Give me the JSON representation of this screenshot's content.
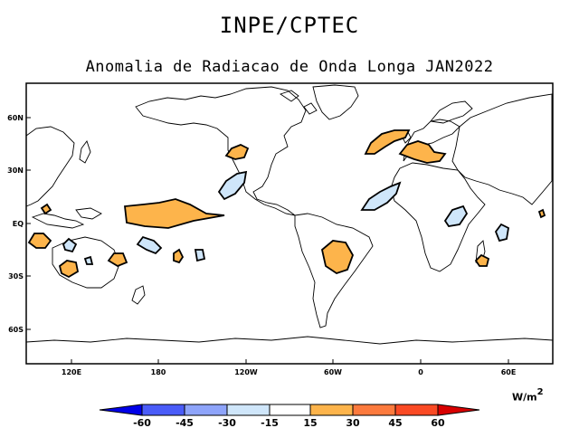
{
  "header": {
    "org": "INPE/CPTEC",
    "title": "Anomalia de Radiacao de Onda Longa JAN2022"
  },
  "axes": {
    "lon_ticks": [
      "120E",
      "180",
      "120W",
      "60W",
      "0",
      "60E"
    ],
    "lat_ticks": [
      "60N",
      "30N",
      "EQ",
      "30S",
      "60S"
    ]
  },
  "colorbar": {
    "units_base": "W/m",
    "units_exp": "2",
    "labels": [
      "-60",
      "-45",
      "-30",
      "-15",
      "15",
      "30",
      "45",
      "60"
    ],
    "colors": [
      "#0000e8",
      "#4a5cf8",
      "#8ea4fa",
      "#cfe6fa",
      "#ffffff",
      "#fdb44b",
      "#fc7a3d",
      "#fa4a24",
      "#d80000"
    ]
  },
  "anomaly_colors": {
    "positive": "#fdb44b",
    "negative": "#cfe6fa",
    "outline": "#000000"
  }
}
